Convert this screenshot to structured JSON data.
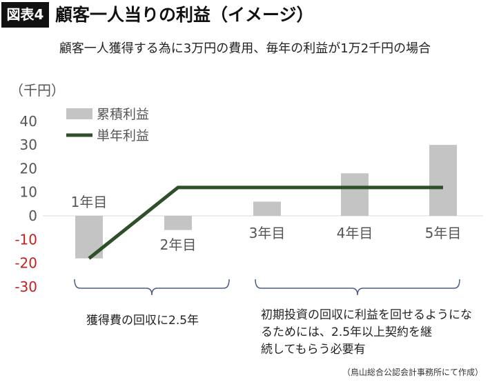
{
  "header": {
    "badge": "図表4",
    "title": "顧客一人当りの利益（イメージ）",
    "subtitle": "顧客一人獲得する為に3万円の費用、毎年の利益が1万2千円の場合"
  },
  "chart_data": {
    "type": "bar",
    "categories": [
      "1年目",
      "2年目",
      "3年目",
      "4年目",
      "5年目"
    ],
    "series": [
      {
        "name": "累積利益",
        "kind": "bar",
        "color": "#c4c4c4",
        "values": [
          -18,
          -6,
          6,
          18,
          30
        ]
      },
      {
        "name": "単年利益",
        "kind": "line",
        "color": "#2f4f2a",
        "values": [
          -18,
          12,
          12,
          12,
          12
        ]
      }
    ],
    "ylabel": "（千円）",
    "ylim": [
      -30,
      40
    ],
    "yticks": [
      40,
      30,
      20,
      10,
      0,
      -10,
      -20,
      -30
    ],
    "negative_tick_color": "#c0211f",
    "legend_position": "top-left",
    "grid": false,
    "annotations": [
      {
        "text": "獲得費の回収に2.5年",
        "bracket": [
          "1年目",
          "2年目"
        ]
      },
      {
        "text": "初期投資の回収に利益を回せるようになるためには、2.5年以上契約を継続してもらう必要有",
        "bracket": [
          "3年目",
          "5年目"
        ]
      }
    ]
  },
  "footer": {
    "source": "（鳥山総合公認会計事務所にて作成）"
  }
}
